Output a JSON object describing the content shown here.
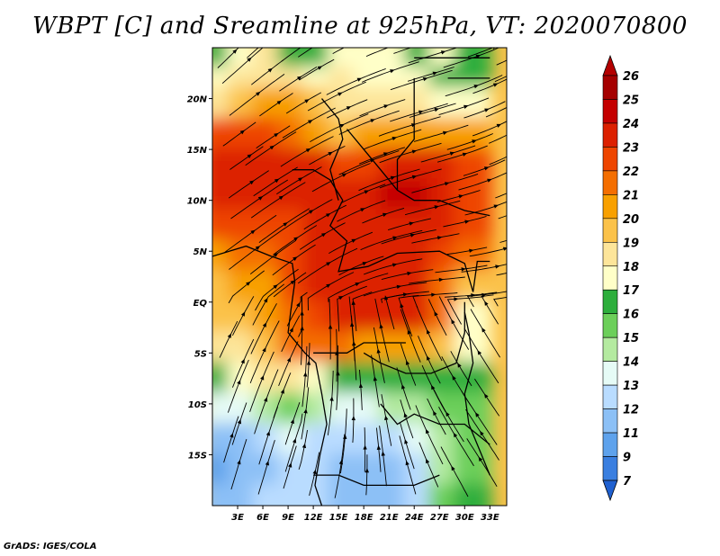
{
  "title": "WBPT [C] and Sreamline at 925hPa, VT: 2020070800",
  "footer": "GrADS: IGES/COLA",
  "chart_data": {
    "type": "heatmap",
    "variable": "WBPT",
    "units": "C",
    "level": "925hPa",
    "valid_time": "2020070800",
    "overlay": "streamlines",
    "x_axis": {
      "range": [
        0,
        35
      ],
      "ticks": [
        3,
        6,
        9,
        12,
        15,
        18,
        21,
        24,
        27,
        30,
        33
      ],
      "tick_labels": [
        "3E",
        "6E",
        "9E",
        "12E",
        "15E",
        "18E",
        "21E",
        "24E",
        "27E",
        "30E",
        "33E"
      ]
    },
    "y_axis": {
      "range": [
        -20,
        25
      ],
      "ticks": [
        20,
        15,
        10,
        5,
        0,
        -5,
        -10,
        -15
      ],
      "tick_labels": [
        "20N",
        "15N",
        "10N",
        "5N",
        "EQ",
        "5S",
        "10S",
        "15S"
      ]
    },
    "colorbar": {
      "levels": [
        26,
        25,
        24,
        23,
        22,
        21,
        20,
        19,
        18,
        17,
        16,
        15,
        14,
        13,
        12,
        11,
        9,
        7
      ],
      "colors": [
        "#a50000",
        "#c40000",
        "#dc2000",
        "#ee4500",
        "#f46e00",
        "#f8a000",
        "#fbc24a",
        "#fde59a",
        "#ffffc8",
        "#2dae3c",
        "#6ccf5a",
        "#b4eaa0",
        "#e6fbf6",
        "#b9dcff",
        "#8cc0f6",
        "#5ea2ec",
        "#3a7fe0",
        "#1f60d0"
      ],
      "arrow_top_color": "#b40000",
      "arrow_bottom_color": "#1f60d0"
    },
    "field_rows": [
      {
        "lat": 24,
        "values": [
          17,
          18,
          19,
          17,
          17,
          18,
          18,
          18,
          17,
          18,
          17
        ]
      },
      {
        "lat": 21,
        "values": [
          18,
          19,
          19,
          19,
          18,
          19,
          18,
          18,
          18,
          17,
          17
        ]
      },
      {
        "lat": 19,
        "values": [
          19,
          20,
          21,
          21,
          20,
          19,
          19,
          19,
          19,
          18,
          18
        ]
      },
      {
        "lat": 16,
        "values": [
          23,
          23,
          23,
          22,
          21,
          20,
          21,
          21,
          21,
          21,
          21
        ]
      },
      {
        "lat": 13,
        "values": [
          24,
          24,
          24,
          24,
          24,
          23,
          23,
          24,
          24,
          24,
          23
        ]
      },
      {
        "lat": 10,
        "values": [
          24,
          24,
          24,
          24,
          24,
          24,
          24,
          25,
          25,
          24,
          23
        ]
      },
      {
        "lat": 7,
        "values": [
          23,
          23,
          23,
          23,
          24,
          24,
          24,
          24,
          24,
          24,
          23
        ]
      },
      {
        "lat": 4,
        "values": [
          21,
          22,
          22,
          23,
          24,
          24,
          24,
          24,
          24,
          23,
          22
        ]
      },
      {
        "lat": 1,
        "values": [
          20,
          21,
          21,
          23,
          24,
          24,
          24,
          24,
          24,
          22,
          20
        ]
      },
      {
        "lat": -2,
        "values": [
          20,
          20,
          21,
          22,
          23,
          24,
          24,
          24,
          24,
          22,
          18
        ]
      },
      {
        "lat": -5,
        "values": [
          19,
          19,
          20,
          22,
          22,
          22,
          21,
          21,
          21,
          20,
          18
        ]
      },
      {
        "lat": -8,
        "values": [
          17,
          18,
          19,
          19,
          18,
          17,
          17,
          17,
          17,
          17,
          17
        ]
      },
      {
        "lat": -11,
        "values": [
          14,
          14,
          15,
          16,
          15,
          14,
          14,
          15,
          15,
          16,
          16
        ]
      },
      {
        "lat": -14,
        "values": [
          12,
          12,
          13,
          14,
          13,
          13,
          13,
          13,
          14,
          15,
          16
        ]
      },
      {
        "lat": -17,
        "values": [
          11,
          12,
          12,
          13,
          13,
          12,
          12,
          12,
          13,
          15,
          16
        ]
      },
      {
        "lat": -20,
        "values": [
          12,
          12,
          13,
          13,
          13,
          12,
          12,
          12,
          13,
          16,
          17
        ]
      }
    ],
    "field_cols_lon": [
      1,
      4,
      7,
      10,
      13,
      16,
      19,
      22,
      25,
      28,
      31
    ],
    "legend_placement": "right",
    "grid": false
  }
}
